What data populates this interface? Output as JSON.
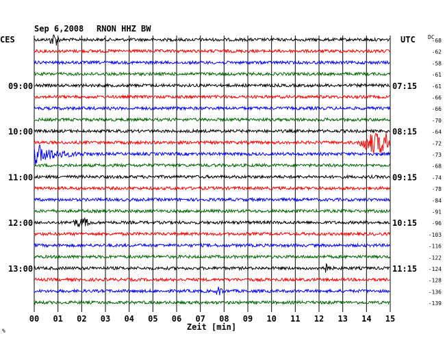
{
  "header": {
    "date": "Sep 6,2008",
    "station": "RNON HHZ BW"
  },
  "left_axis_title": "CES",
  "right_axis_title": "UTC",
  "dc_label": "DC",
  "chart_data": {
    "type": "line",
    "title": "Sep 6,2008   RNON HHZ BW",
    "xlabel": "Zeit [min]",
    "xlim": [
      0,
      15
    ],
    "x_ticks": [
      "00",
      "01",
      "02",
      "03",
      "04",
      "05",
      "06",
      "07",
      "08",
      "09",
      "10",
      "11",
      "12",
      "13",
      "14",
      "15"
    ],
    "trace_colors": [
      "#000000",
      "#ff0000",
      "#0000ff",
      "#006400"
    ],
    "left_time_labels": [
      "",
      "",
      "",
      "",
      "09:00",
      "",
      "",
      "",
      "10:00",
      "",
      "",
      "",
      "11:00",
      "",
      "",
      "",
      "12:00",
      "",
      "",
      "",
      "13:00",
      "",
      "",
      ""
    ],
    "right_time_labels": [
      "",
      "",
      "",
      "",
      "07:15",
      "",
      "",
      "",
      "08:15",
      "",
      "",
      "",
      "09:15",
      "",
      "",
      "",
      "10:15",
      "",
      "",
      "",
      "11:15",
      "",
      "",
      ""
    ],
    "dc_offsets": [
      -68,
      -62,
      -58,
      -61,
      -61,
      -66,
      -66,
      -70,
      -64,
      -72,
      -73,
      -68,
      -74,
      -78,
      -84,
      -91,
      -96,
      -103,
      -116,
      -122,
      -124,
      -128,
      -136,
      -139
    ],
    "events": [
      {
        "trace": 0,
        "start_min": 0.6,
        "end_min": 1.1,
        "amp": 0.5
      },
      {
        "trace": 9,
        "start_min": 13.6,
        "end_min": 15.0,
        "amp": 0.85
      },
      {
        "trace": 10,
        "start_min": 0.0,
        "end_min": 2.5,
        "amp": 1.0
      },
      {
        "trace": 16,
        "start_min": 1.5,
        "end_min": 2.5,
        "amp": 0.3
      },
      {
        "trace": 20,
        "start_min": 12.0,
        "end_min": 12.5,
        "amp": 0.35
      },
      {
        "trace": 22,
        "start_min": 7.6,
        "end_min": 8.0,
        "amp": 0.3
      }
    ],
    "grid": true
  }
}
